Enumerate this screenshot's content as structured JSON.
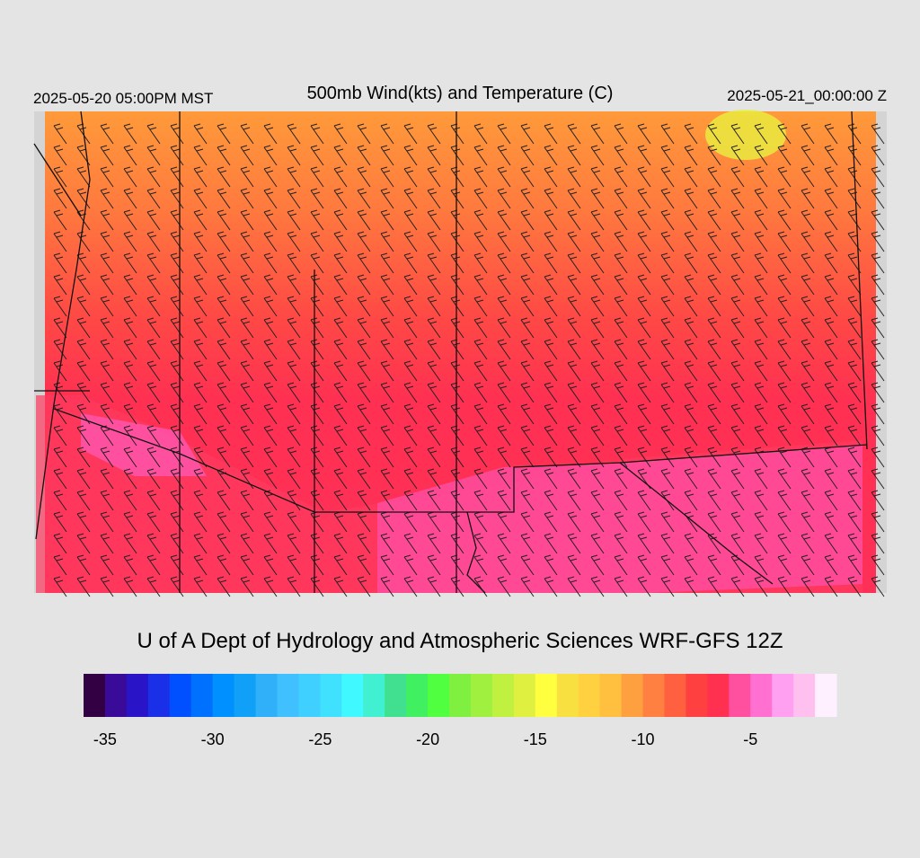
{
  "header": {
    "left": "2025-05-20 05:00PM MST",
    "title": "500mb Wind(kts) and Temperature (C)",
    "right": "2025-05-21_00:00:00 Z"
  },
  "footer": {
    "credit": "U of A Dept of Hydrology and Atmospheric Sciences WRF-GFS 12Z"
  },
  "colorbar": {
    "range": [
      -36,
      -1
    ],
    "colors": [
      "#330044",
      "#3a0a99",
      "#2a14c8",
      "#1a30e8",
      "#0050ff",
      "#0070ff",
      "#0090ff",
      "#10a0f8",
      "#30b0f8",
      "#40c0ff",
      "#40d0ff",
      "#40e0ff",
      "#40f8ff",
      "#40f0d0",
      "#40e090",
      "#40f060",
      "#50ff40",
      "#80f040",
      "#a0f040",
      "#c0f040",
      "#e0f040",
      "#ffff40",
      "#f8e040",
      "#ffd040",
      "#ffc040",
      "#ffa040",
      "#ff8040",
      "#ff6040",
      "#ff4040",
      "#ff3050",
      "#ff50a0",
      "#ff70d0",
      "#ffa0f0",
      "#ffc0f0",
      "#fff0ff"
    ],
    "ticks": [
      -35,
      -30,
      -25,
      -20,
      -15,
      -10,
      -5
    ]
  }
}
